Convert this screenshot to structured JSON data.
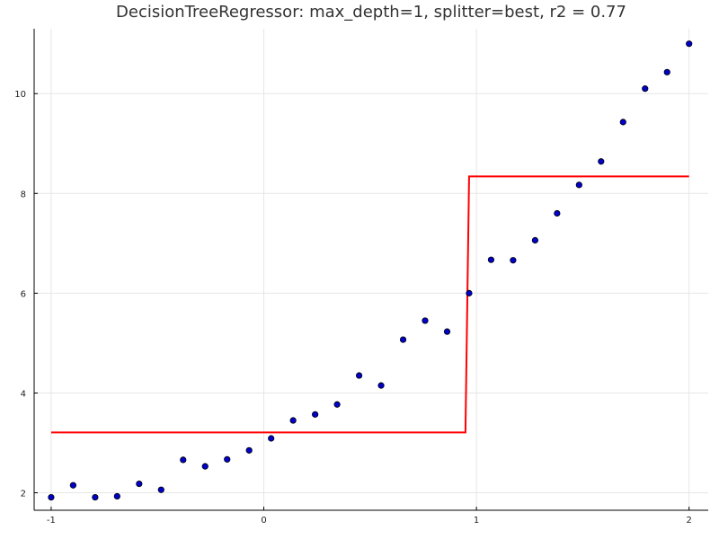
{
  "chart_data": {
    "type": "scatter",
    "title": "DecisionTreeRegressor: max_depth=1, splitter=best, r2 = 0.77",
    "xlabel": "",
    "ylabel": "",
    "xlim": [
      -1.08,
      2.09
    ],
    "ylim": [
      1.65,
      11.3
    ],
    "grid": true,
    "legend": "none",
    "xticks": [
      -1,
      0,
      1,
      2
    ],
    "xtick_labels": [
      "-1",
      "0",
      "1",
      "2"
    ],
    "yticks": [
      2,
      4,
      6,
      8,
      10
    ],
    "ytick_labels": [
      "2",
      "4",
      "6",
      "8",
      "10"
    ],
    "series": [
      {
        "kind": "scatter",
        "color": "#0000cc",
        "x": [
          -1.0,
          -0.8966,
          -0.7931,
          -0.6897,
          -0.5862,
          -0.4828,
          -0.3793,
          -0.2759,
          -0.1724,
          -0.069,
          0.0345,
          0.1379,
          0.2414,
          0.3448,
          0.4483,
          0.5517,
          0.6552,
          0.7586,
          0.8621,
          0.9655,
          1.069,
          1.1724,
          1.2759,
          1.3793,
          1.4828,
          1.5862,
          1.6897,
          1.7931,
          1.8966,
          2.0
        ],
        "y": [
          1.91,
          2.15,
          1.91,
          1.93,
          2.18,
          2.06,
          2.66,
          2.53,
          2.67,
          2.85,
          3.09,
          3.45,
          3.57,
          3.77,
          4.35,
          4.15,
          5.07,
          5.45,
          5.23,
          6.0,
          6.67,
          6.66,
          7.06,
          7.6,
          8.17,
          8.64,
          9.43,
          10.1,
          10.43,
          11.0
        ]
      },
      {
        "kind": "line",
        "color": "#ff0000",
        "x": [
          -1.0,
          0.9483,
          0.9655,
          2.0
        ],
        "y": [
          3.21,
          3.21,
          8.34,
          8.34
        ]
      }
    ]
  }
}
